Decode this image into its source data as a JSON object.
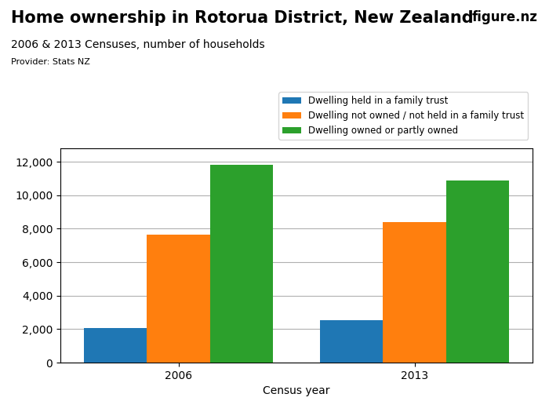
{
  "chart_data": {
    "type": "bar",
    "title": "Home ownership in Rotorua District, New Zealand",
    "subtitle": "2006 & 2013 Censuses, number of households",
    "annotations": [
      "Provider: Stats NZ",
      "figure.nz"
    ],
    "x_label": "Census year",
    "categories": [
      "2006",
      "2013"
    ],
    "series": [
      {
        "name": "Dwelling held in a family trust",
        "values": [
          2050,
          2550
        ]
      },
      {
        "name": "Dwelling not owned / not held in a family trust",
        "values": [
          7650,
          8400
        ]
      },
      {
        "name": "Dwelling owned or partly owned",
        "values": [
          11800,
          10900
        ]
      }
    ],
    "ylim": [
      0,
      12800
    ],
    "yticks": [
      0,
      {
        "value": 2000,
        "label": "2,000"
      },
      {
        "value": 4000,
        "label": "4,000"
      },
      {
        "value": 6000,
        "label": "6,000"
      },
      {
        "value": 8000,
        "label": "8,000"
      },
      {
        "value": 10000,
        "label": "10,000"
      },
      {
        "value": 12000,
        "label": "12,000"
      }
    ],
    "grid": true,
    "legend": "lower right"
  }
}
